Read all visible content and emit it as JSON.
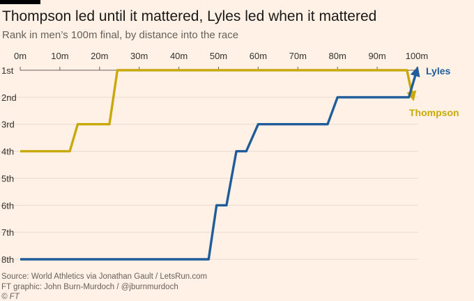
{
  "title": "Thompson led until it mattered, Lyles led when it mattered",
  "subtitle": "Rank in men’s 100m final, by distance into the race",
  "source_line1": "Source: World Athletics via Jonathan Gault / LetsRun.com",
  "source_line2": "FT graphic: John Burn-Murdoch / @jburnmurdoch",
  "source_line3": "© FT",
  "colors": {
    "background": "#fff1e5",
    "lyles": "#1f5c99",
    "thompson": "#c9a80b",
    "grid": "#e6d9ce",
    "axis": "#66605c"
  },
  "chart_data": {
    "type": "line",
    "title": "Thompson led until it mattered, Lyles led when it mattered",
    "xlabel": "",
    "ylabel": "",
    "xlim": [
      0,
      100
    ],
    "ylim": [
      1,
      8
    ],
    "x_ticks": [
      0,
      10,
      20,
      30,
      40,
      50,
      60,
      70,
      80,
      90,
      100
    ],
    "x_tick_labels": [
      "0m",
      "10m",
      "20m",
      "30m",
      "40m",
      "50m",
      "60m",
      "70m",
      "80m",
      "90m",
      "100m"
    ],
    "y_ticks": [
      1,
      2,
      3,
      4,
      5,
      6,
      7,
      8
    ],
    "y_tick_labels": [
      "1st",
      "2nd",
      "3rd",
      "4th",
      "5th",
      "6th",
      "7th",
      "8th"
    ],
    "series": [
      {
        "name": "Thompson",
        "label": "Thompson",
        "color": "#c9a80b",
        "points": [
          [
            0,
            4
          ],
          [
            12.5,
            4
          ],
          [
            14.5,
            3
          ],
          [
            22.5,
            3
          ],
          [
            24.5,
            1
          ],
          [
            97.5,
            1
          ],
          [
            98.5,
            1.7
          ],
          [
            99,
            2
          ]
        ]
      },
      {
        "name": "Lyles",
        "label": "Lyles",
        "color": "#1f5c99",
        "points": [
          [
            0,
            8
          ],
          [
            47.5,
            8
          ],
          [
            49.5,
            6
          ],
          [
            52,
            6
          ],
          [
            54.5,
            4
          ],
          [
            57,
            4
          ],
          [
            60,
            3
          ],
          [
            77.5,
            3
          ],
          [
            80,
            2
          ],
          [
            98,
            2
          ],
          [
            100,
            1
          ]
        ]
      }
    ]
  }
}
